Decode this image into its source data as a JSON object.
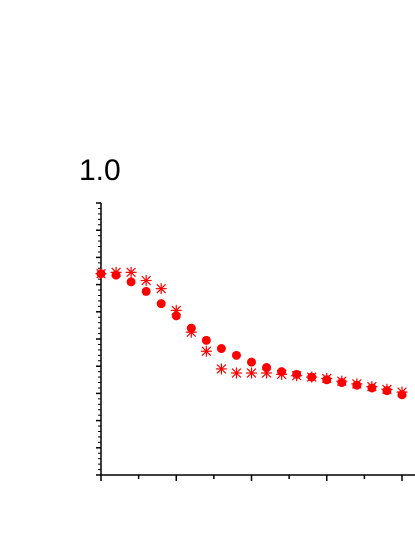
{
  "chart_data": {
    "type": "scatter",
    "title": "",
    "xlabel": "",
    "ylabel": "",
    "ylim": [
      0,
      1.0
    ],
    "y_tick_labels": [
      "1.0"
    ],
    "xlim": [
      0,
      20
    ],
    "y_axis": "left",
    "x_axis": "bottom",
    "grid": false,
    "legend": "none",
    "colors": {
      "marker": "#ff0000",
      "axis": "#000000"
    },
    "series": [
      {
        "marker": "asterisk",
        "x": [
          0,
          1,
          2,
          3,
          4,
          5,
          6,
          7,
          8,
          9,
          10,
          11,
          12,
          13,
          14,
          15,
          16,
          17,
          18,
          19,
          20
        ],
        "y": [
          0.74,
          0.745,
          0.745,
          0.715,
          0.685,
          0.605,
          0.525,
          0.455,
          0.39,
          0.375,
          0.375,
          0.375,
          0.37,
          0.365,
          0.36,
          0.355,
          0.345,
          0.335,
          0.325,
          0.315,
          0.305
        ]
      },
      {
        "marker": "circle",
        "x": [
          0,
          1,
          2,
          3,
          4,
          5,
          6,
          7,
          8,
          9,
          10,
          11,
          12,
          13,
          14,
          15,
          16,
          17,
          18,
          19,
          20
        ],
        "y": [
          0.74,
          0.735,
          0.71,
          0.675,
          0.63,
          0.585,
          0.54,
          0.495,
          0.465,
          0.44,
          0.415,
          0.395,
          0.38,
          0.37,
          0.36,
          0.35,
          0.34,
          0.33,
          0.32,
          0.31,
          0.295
        ]
      }
    ]
  }
}
